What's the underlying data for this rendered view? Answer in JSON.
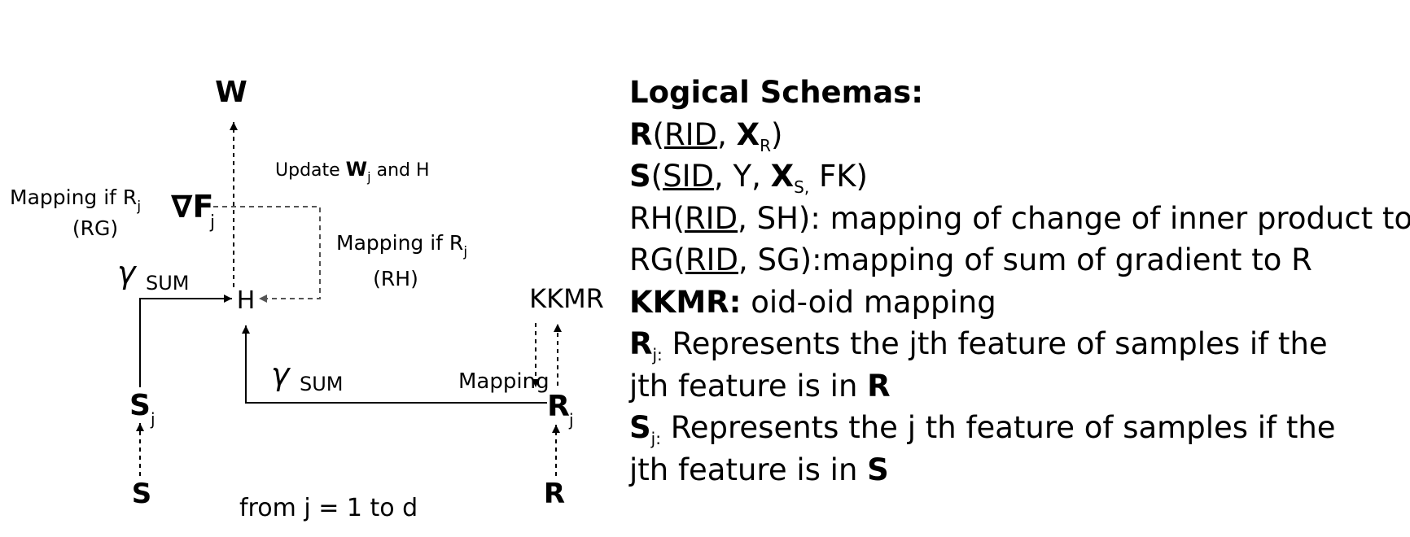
{
  "diagram": {
    "W": "W",
    "update_prefix": "Update ",
    "update_w": "W",
    "update_j": "j",
    "update_suffix": "  and H",
    "mapping_rg_line1": "Mapping if R",
    "mapping_rg_sub": "j",
    "mapping_rg_line2": "(RG)",
    "grad_symbol": "∇F",
    "grad_sub": "j",
    "mapping_rh_line1": "Mapping if R",
    "mapping_rh_sub": "j",
    "mapping_rh_line2": "(RH)",
    "gamma": "γ",
    "sum": "SUM",
    "H": "H",
    "KKMR": "KKMR",
    "mapping": "Mapping",
    "S_j": "S",
    "R_j": "R",
    "sub_j": "j",
    "S": "S",
    "R": "R",
    "loop": "from j = 1 to d"
  },
  "schemas": {
    "title": "Logical Schemas:",
    "r_name": "R",
    "r_key": "RID",
    "r_attr": "X",
    "r_attr_sub": "R",
    "s_name": "S",
    "s_key": "SID",
    "s_mid": ", Y, ",
    "s_attr": "X",
    "s_attr_sub": "S,",
    "s_tail": " FK)",
    "rh_prefix": "RH(",
    "rh_key": "RID",
    "rh_tail": ", SH): mapping of change of inner product to H",
    "rg_prefix": "RG(",
    "rg_key": "RID",
    "rg_tail": ", SG):mapping of sum of gradient to R",
    "kkmr_label": "KKMR:",
    "kkmr_text": " oid-oid mapping",
    "rj_name": "R",
    "rj_sub": "j:",
    "rj_text": " Represents the jth feature of samples if the jth feature is in ",
    "rj_end": "R",
    "sj_name": "S",
    "sj_sub": "j:",
    "sj_text": " Represents the j th feature of samples if the jth feature is in ",
    "sj_end": "S"
  }
}
